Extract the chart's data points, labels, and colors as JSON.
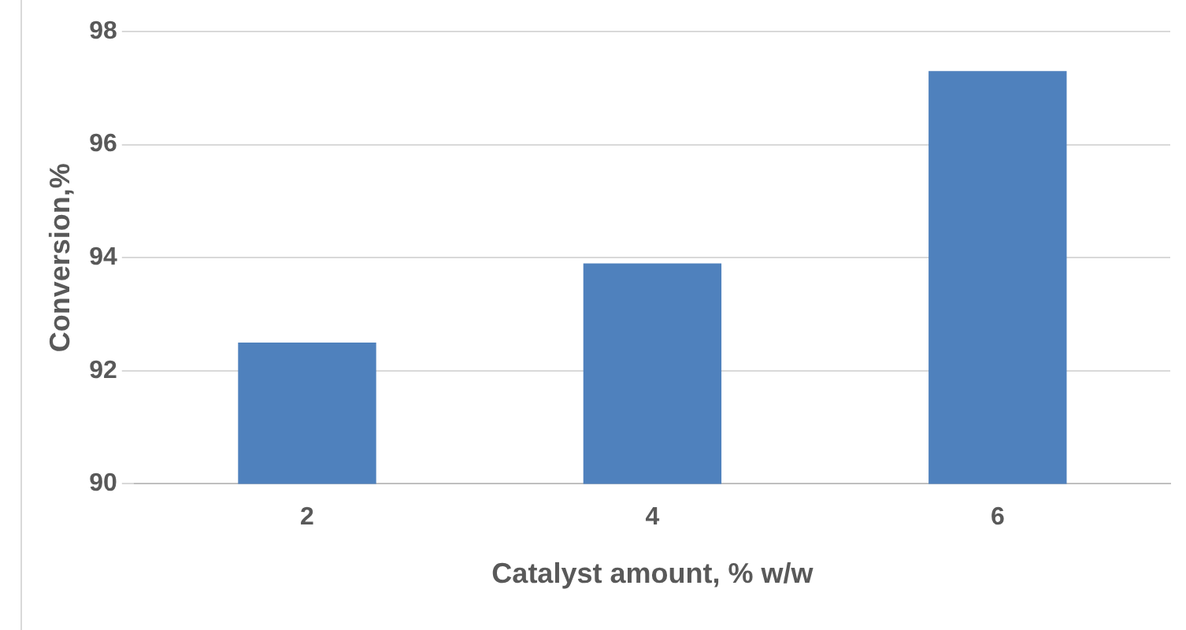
{
  "chart_data": {
    "type": "bar",
    "xlabel": "Catalyst amount, % w/w",
    "ylabel": "Conversion,%",
    "categories": [
      "2",
      "4",
      "6"
    ],
    "values": [
      92.5,
      93.9,
      97.3
    ],
    "color": "#4f81bd",
    "ylim": [
      90,
      98
    ],
    "yticks": [
      90,
      92,
      94,
      96,
      98
    ],
    "grid": "y",
    "legend": false
  }
}
